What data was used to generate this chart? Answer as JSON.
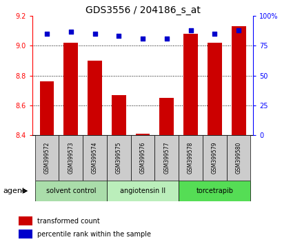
{
  "title": "GDS3556 / 204186_s_at",
  "samples": [
    "GSM399572",
    "GSM399573",
    "GSM399574",
    "GSM399575",
    "GSM399576",
    "GSM399577",
    "GSM399578",
    "GSM399579",
    "GSM399580"
  ],
  "transformed_counts": [
    8.76,
    9.02,
    8.9,
    8.67,
    8.41,
    8.65,
    9.08,
    9.02,
    9.13
  ],
  "percentile_ranks": [
    85,
    87,
    85,
    83,
    81,
    81,
    88,
    85,
    88
  ],
  "ylim_left": [
    8.4,
    9.2
  ],
  "ylim_right": [
    0,
    100
  ],
  "yticks_left": [
    8.4,
    8.6,
    8.8,
    9.0,
    9.2
  ],
  "yticks_right": [
    0,
    25,
    50,
    75,
    100
  ],
  "ytick_labels_right": [
    "0",
    "25",
    "50",
    "75",
    "100%"
  ],
  "bar_color": "#cc0000",
  "dot_color": "#0000cc",
  "bar_bottom": 8.4,
  "groups": [
    {
      "label": "solvent control",
      "indices": [
        0,
        1,
        2
      ],
      "color": "#aaddaa"
    },
    {
      "label": "angiotensin II",
      "indices": [
        3,
        4,
        5
      ],
      "color": "#bbeebb"
    },
    {
      "label": "torcetrapib",
      "indices": [
        6,
        7,
        8
      ],
      "color": "#55dd55"
    }
  ],
  "agent_label": "agent",
  "legend_items": [
    {
      "label": "transformed count",
      "color": "#cc0000"
    },
    {
      "label": "percentile rank within the sample",
      "color": "#0000cc"
    }
  ],
  "bar_width": 0.6,
  "sample_bg_color": "#cccccc",
  "grid_yticks": [
    9.0,
    8.8,
    8.6
  ]
}
